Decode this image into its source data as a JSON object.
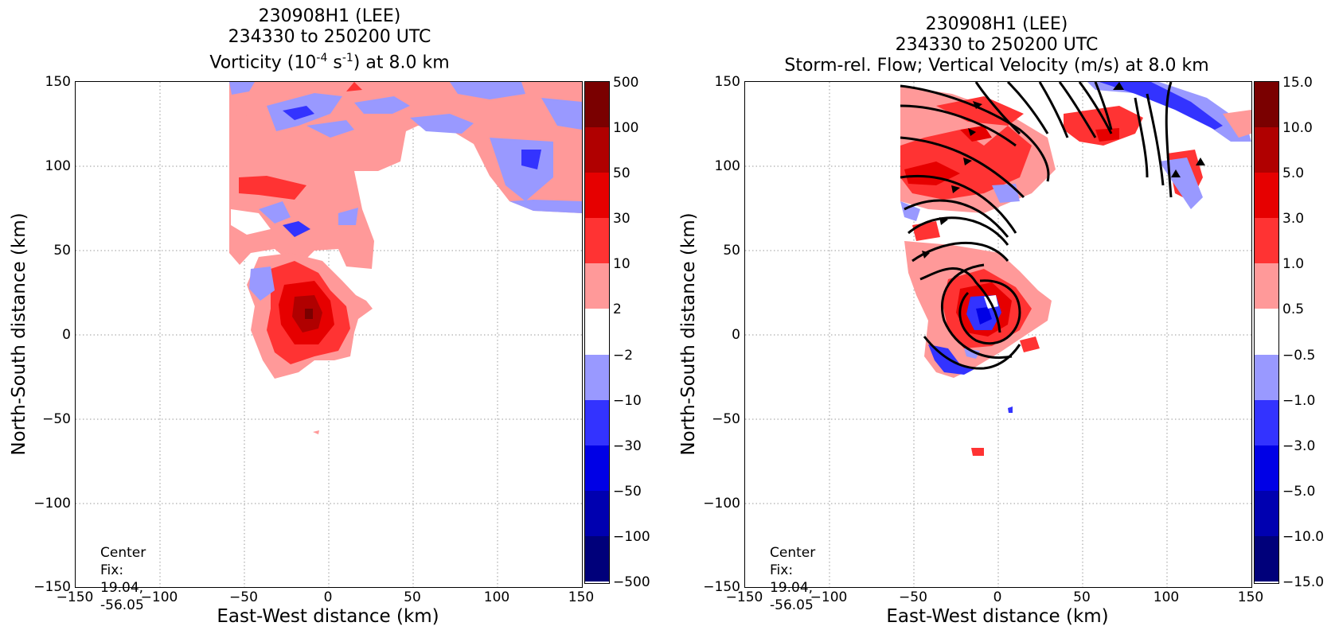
{
  "chart_data": [
    {
      "type": "heatmap",
      "title": [
        "230908H1 (LEE)",
        "234330 to 250200 UTC"
      ],
      "title_line3": {
        "pre": "Vorticity (10",
        "sup1": "-4",
        "mid": " s",
        "sup2": "-1",
        "post": ") at 8.0 km"
      },
      "xlabel": "East-West distance (km)",
      "ylabel": "North-South distance (km)",
      "xlim": [
        -150,
        150
      ],
      "ylim": [
        -150,
        150
      ],
      "xticks": [
        "−150",
        "−100",
        "−50",
        "0",
        "50",
        "100",
        "150"
      ],
      "yticks": [
        "150",
        "100",
        "50",
        "0",
        "−50",
        "−100",
        "−150"
      ],
      "grid": true,
      "colorbar": {
        "labels": [
          "500",
          "100",
          "50",
          "30",
          "10",
          "2",
          "−2",
          "−10",
          "−30",
          "−50",
          "−100",
          "−500"
        ],
        "colors": [
          "#7a0000",
          "#b00000",
          "#e60000",
          "#ff3333",
          "#ff9999",
          "#ffffff",
          "#9999ff",
          "#3333ff",
          "#0000e6",
          "#0000b0",
          "#00007a"
        ]
      },
      "annotation": [
        "Center Fix:",
        "19.04, -56.05"
      ]
    },
    {
      "type": "heatmap",
      "title": [
        "230908H1 (LEE)",
        "234330 to 250200 UTC",
        "Storm-rel. Flow; Vertical Velocity (m/s) at 8.0 km"
      ],
      "xlabel": "East-West distance (km)",
      "ylabel": "North-South distance (km)",
      "xlim": [
        -150,
        150
      ],
      "ylim": [
        -150,
        150
      ],
      "xticks": [
        "−150",
        "−100",
        "−50",
        "0",
        "50",
        "100",
        "150"
      ],
      "yticks": [
        "150",
        "100",
        "50",
        "0",
        "−50",
        "−100",
        "−150"
      ],
      "grid": true,
      "colorbar": {
        "labels": [
          "15.0",
          "10.0",
          "5.0",
          "3.0",
          "1.0",
          "0.5",
          "−0.5",
          "−1.0",
          "−3.0",
          "−5.0",
          "−10.0",
          "−15.0"
        ],
        "colors": [
          "#7a0000",
          "#b00000",
          "#e60000",
          "#ff3333",
          "#ff9999",
          "#ffffff",
          "#9999ff",
          "#3333ff",
          "#0000e6",
          "#0000b0",
          "#00007a"
        ]
      },
      "annotation": [
        "Center Fix:",
        "19.04, -56.05"
      ]
    }
  ]
}
